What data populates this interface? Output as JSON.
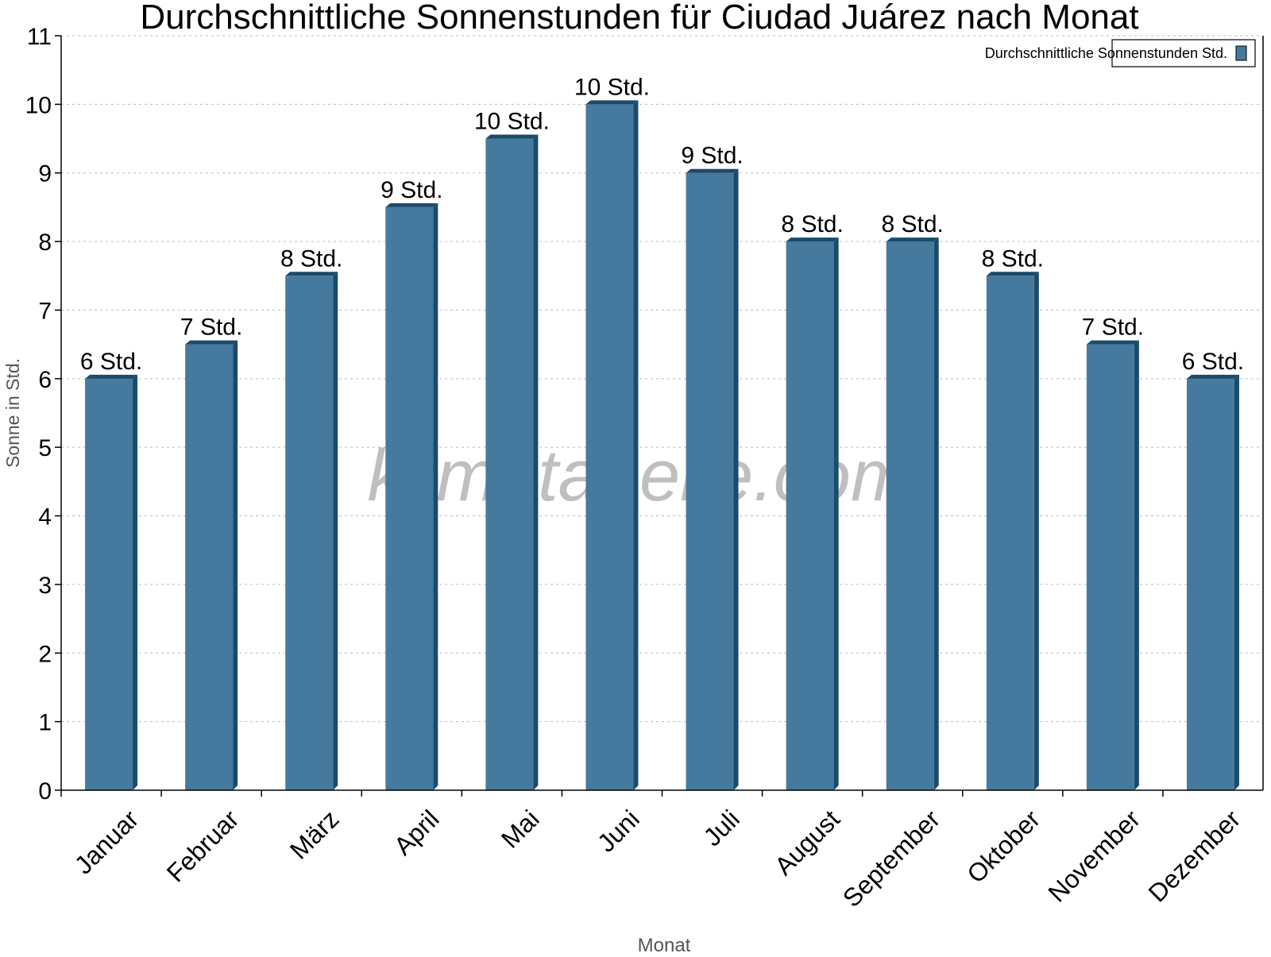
{
  "chart_data": {
    "type": "bar",
    "title": "Durchschnittliche Sonnenstunden für Ciudad Juárez nach Monat",
    "xlabel": "Monat",
    "ylabel": "Sonne in Std.",
    "ylim": [
      0,
      11
    ],
    "yticks": [
      0,
      1,
      2,
      3,
      4,
      5,
      6,
      7,
      8,
      9,
      10,
      11
    ],
    "grid": true,
    "legend_position": "top-right",
    "categories": [
      "Januar",
      "Februar",
      "März",
      "April",
      "Mai",
      "Juni",
      "Juli",
      "August",
      "September",
      "Oktober",
      "November",
      "Dezember"
    ],
    "series": [
      {
        "name": "Durchschnittliche Sonnenstunden Std.",
        "values": [
          6,
          6.5,
          7.5,
          8.5,
          9.5,
          10,
          9,
          8,
          8,
          7.5,
          6.5,
          6
        ],
        "labels": [
          "6 Std.",
          "7 Std.",
          "8 Std.",
          "9 Std.",
          "10 Std.",
          "10 Std.",
          "9 Std.",
          "8 Std.",
          "8 Std.",
          "8 Std.",
          "7 Std.",
          "6 Std."
        ],
        "color": "#457a9e",
        "side_color": "#1b4b6b"
      }
    ],
    "watermark": "klimatabelle.com"
  }
}
